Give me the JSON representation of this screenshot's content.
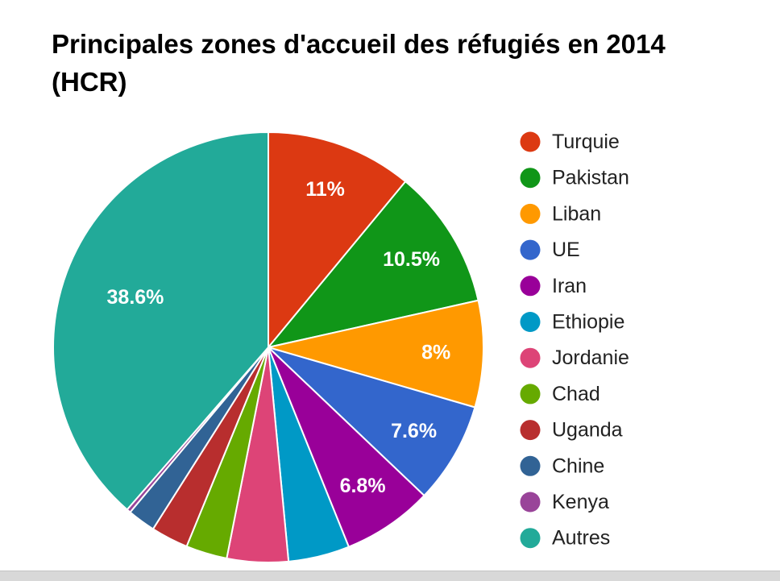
{
  "chart_data": {
    "type": "pie",
    "title": "Principales zones d'accueil des réfugiés en 2014 (HCR)",
    "title_lines": [
      "Principales zones d'accueil des réfugiés en 2014",
      "(HCR)"
    ],
    "legend_position": "right",
    "slices": [
      {
        "name": "Turquie",
        "value": 11.0,
        "label": "11%",
        "color": "#dc3912"
      },
      {
        "name": "Pakistan",
        "value": 10.5,
        "label": "10.5%",
        "color": "#109618"
      },
      {
        "name": "Liban",
        "value": 8.0,
        "label": "8%",
        "color": "#ff9900"
      },
      {
        "name": "UE",
        "value": 7.6,
        "label": "7.6%",
        "color": "#3366cc"
      },
      {
        "name": "Iran",
        "value": 6.8,
        "label": "6.8%",
        "color": "#990099"
      },
      {
        "name": "Ethiopie",
        "value": 4.6,
        "label": "",
        "color": "#0099c6"
      },
      {
        "name": "Jordanie",
        "value": 4.6,
        "label": "",
        "color": "#dd4477"
      },
      {
        "name": "Chad",
        "value": 3.1,
        "label": "",
        "color": "#66aa00"
      },
      {
        "name": "Uganda",
        "value": 2.8,
        "label": "",
        "color": "#b82e2e"
      },
      {
        "name": "Chine",
        "value": 2.1,
        "label": "",
        "color": "#316395"
      },
      {
        "name": "Kenya",
        "value": 0.3,
        "label": "",
        "color": "#994499"
      },
      {
        "name": "Autres",
        "value": 38.6,
        "label": "38.6%",
        "color": "#22aa99"
      }
    ]
  }
}
